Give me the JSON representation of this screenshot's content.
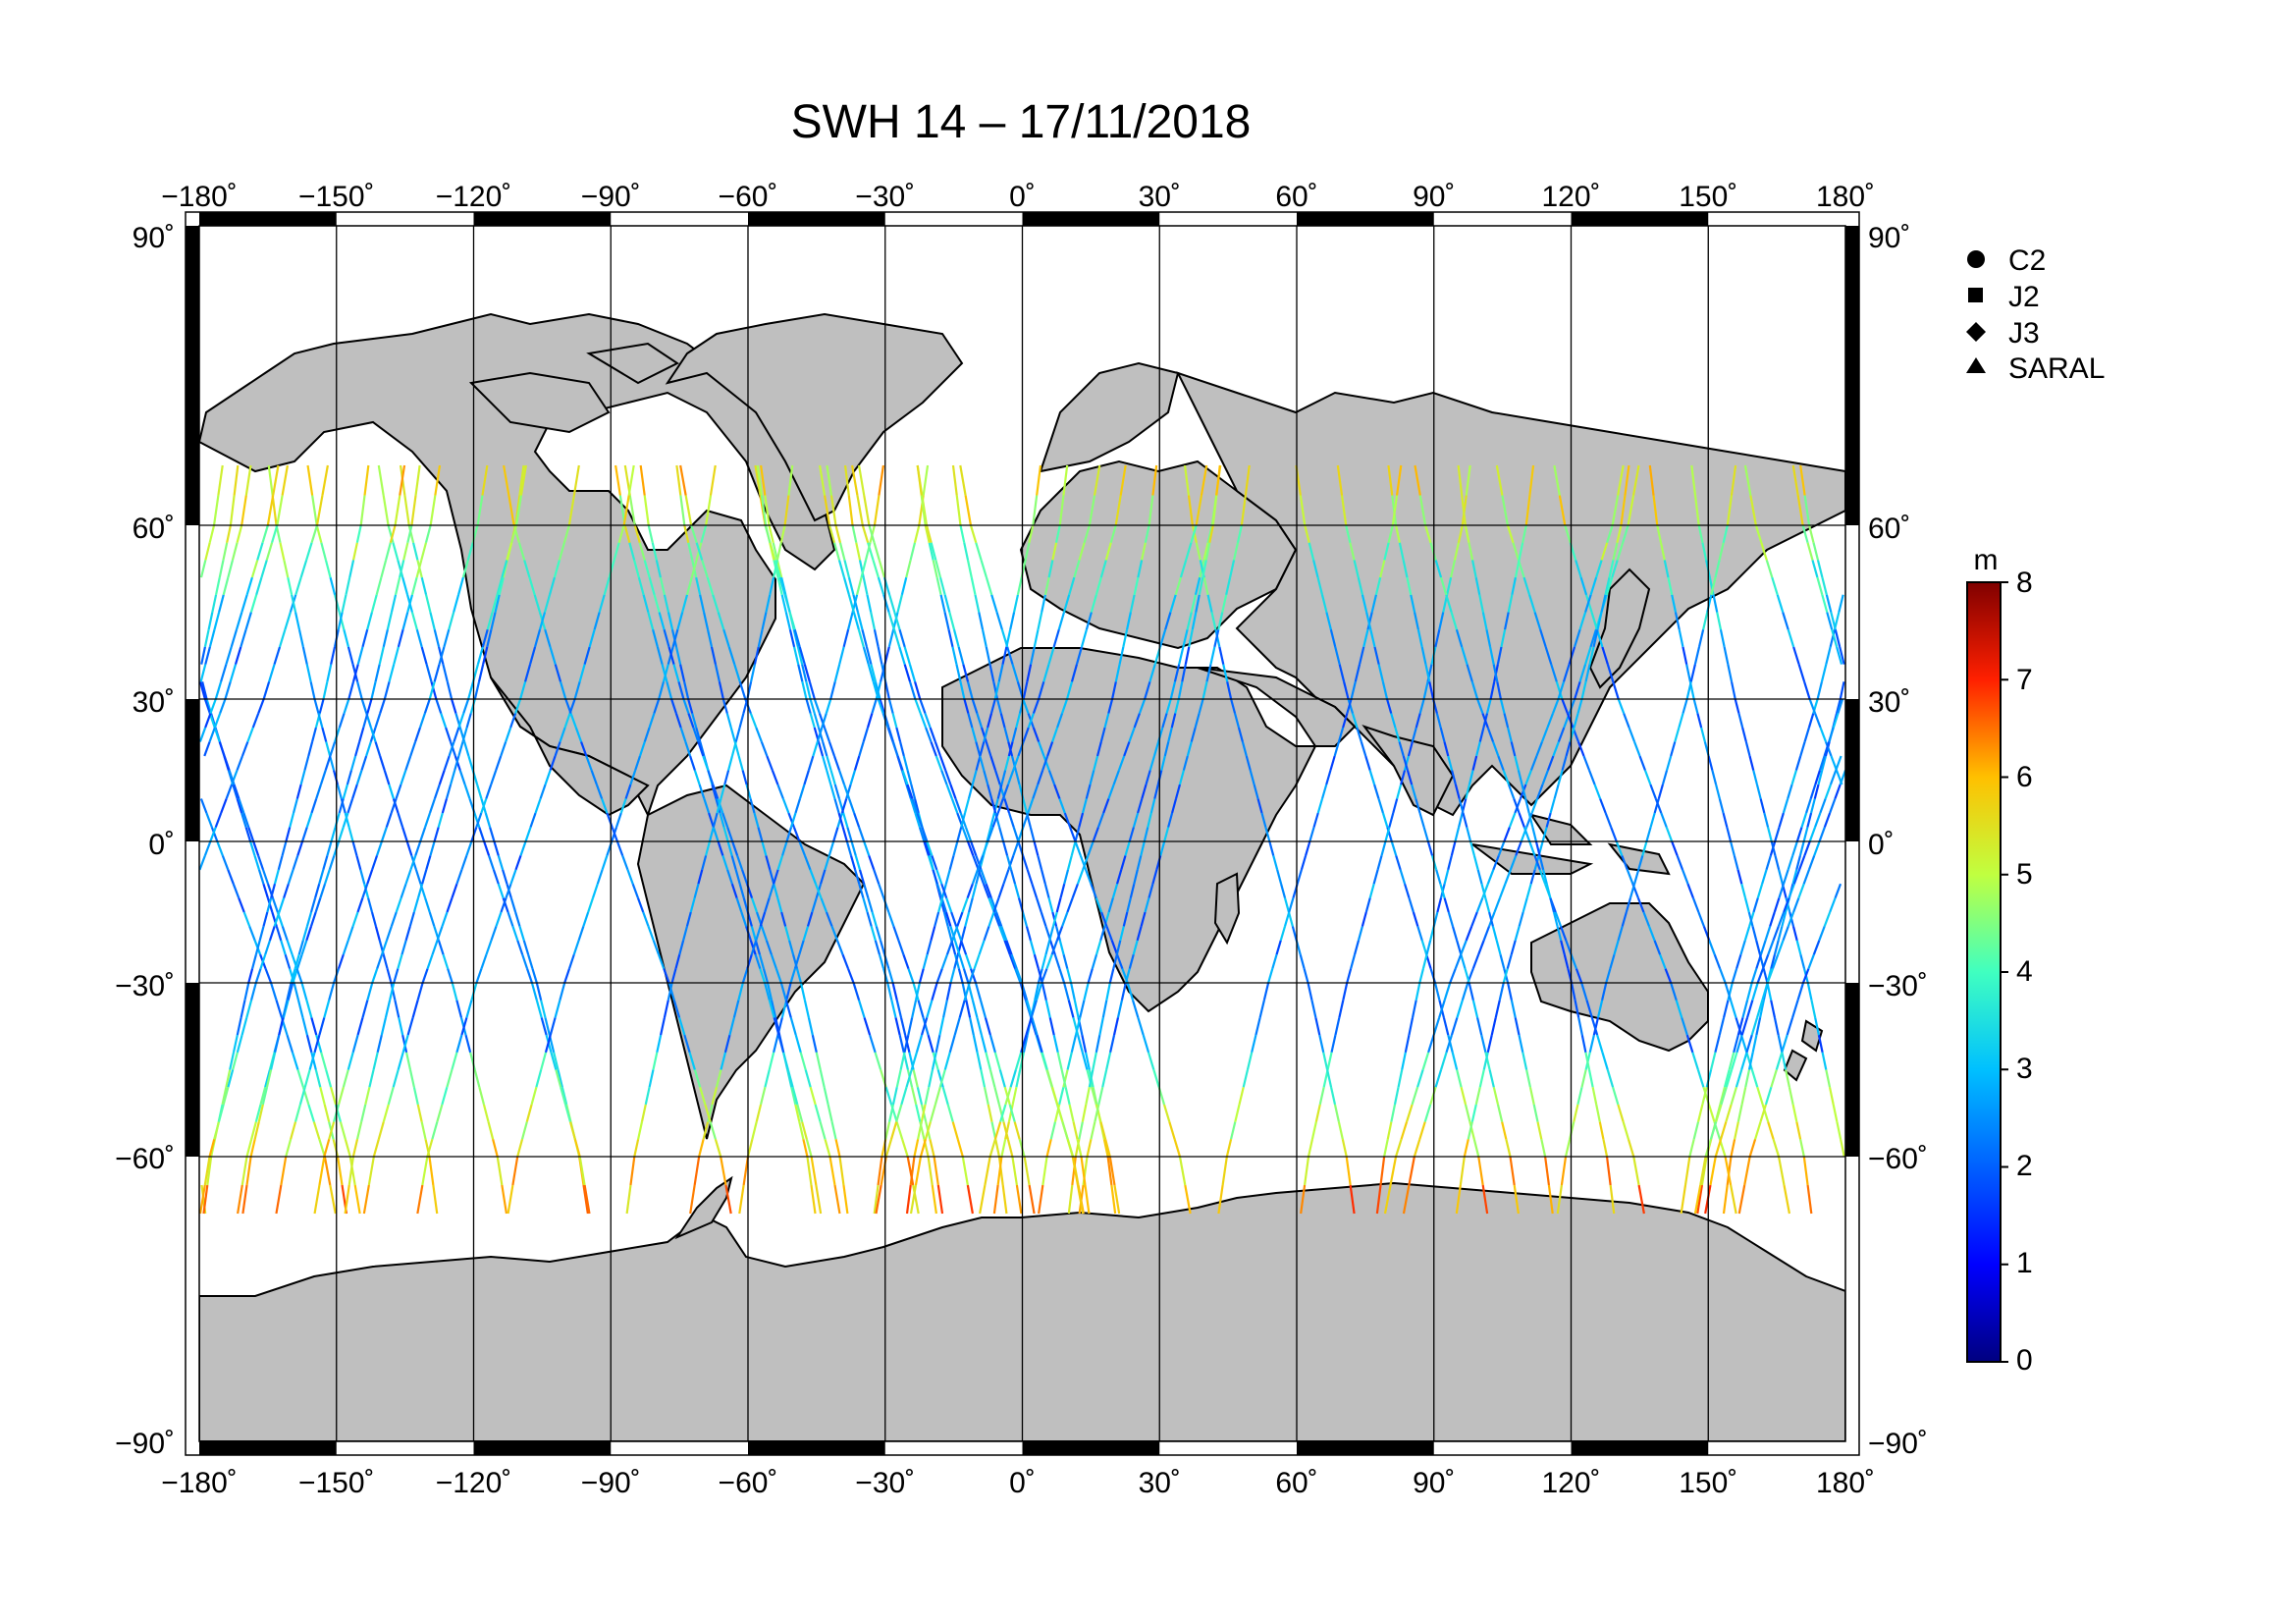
{
  "title": "SWH 14 – 17/11/2018",
  "lon_ticks": [
    "−180˚",
    "−150˚",
    "−120˚",
    "−90˚",
    "−60˚",
    "−30˚",
    "0˚",
    "30˚",
    "60˚",
    "90˚",
    "120˚",
    "150˚",
    "180˚"
  ],
  "lat_ticks": [
    "90˚",
    "60˚",
    "30˚",
    "0˚",
    "−30˚",
    "−60˚",
    "−90˚"
  ],
  "legend": {
    "items": [
      {
        "label": "C2",
        "symbol": "circle-icon"
      },
      {
        "label": "J2",
        "symbol": "square-icon"
      },
      {
        "label": "J3",
        "symbol": "diamond-icon"
      },
      {
        "label": "SARAL",
        "symbol": "triangle-icon"
      }
    ]
  },
  "colorbar": {
    "unit": "m",
    "ticks": [
      "8",
      "7",
      "6",
      "5",
      "4",
      "3",
      "2",
      "1",
      "0"
    ],
    "min": 0,
    "max": 8,
    "colormap": [
      "#000080",
      "#0000ff",
      "#0080ff",
      "#00ffff",
      "#80ff80",
      "#ffff00",
      "#ff8000",
      "#ff0000",
      "#800000"
    ]
  },
  "colors": {
    "land": "#bfbfbf",
    "coast": "#000000",
    "ocean": "#ffffff",
    "grid": "#000000"
  }
}
